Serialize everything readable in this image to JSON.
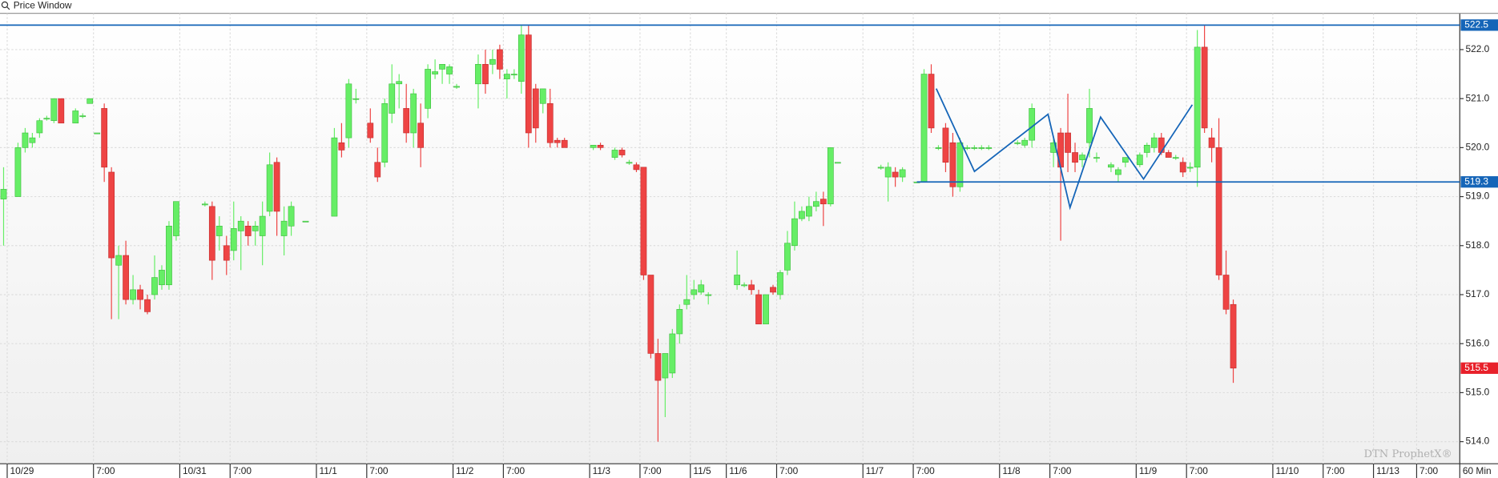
{
  "window_title": "Price Window",
  "chart_data": {
    "type": "candlestick",
    "interval": "60 Min",
    "watermark": "DTN ProphetX®",
    "categories": [
      null,
      "10/29",
      null,
      null,
      null,
      null,
      null,
      null,
      null,
      null,
      null,
      null,
      null,
      "7:00",
      null,
      null,
      null,
      null,
      null,
      null,
      null,
      null,
      null,
      null,
      null,
      "10/31",
      null,
      null,
      null,
      null,
      null,
      null,
      "7:00",
      null,
      null,
      null,
      null,
      null,
      null,
      null,
      null,
      null,
      null,
      null,
      "11/1",
      null,
      null,
      null,
      null,
      null,
      null,
      "7:00",
      null,
      null,
      null,
      null,
      null,
      null,
      null,
      null,
      null,
      null,
      null,
      "11/2",
      null,
      null,
      null,
      null,
      null,
      null,
      "7:00",
      null,
      null,
      null,
      null,
      null,
      null,
      null,
      null,
      null,
      null,
      null,
      "11/3",
      null,
      null,
      null,
      null,
      null,
      null,
      "7:00",
      null,
      null,
      null,
      null,
      null,
      null,
      "11/5",
      null,
      null,
      null,
      null,
      "11/6",
      null,
      null,
      null,
      null,
      null,
      null,
      "7:00",
      null,
      null,
      null,
      null,
      null,
      null,
      null,
      null,
      null,
      null,
      null,
      "11/7",
      null,
      null,
      null,
      null,
      null,
      null,
      "7:00",
      null,
      null,
      null,
      null,
      null,
      null,
      null,
      null,
      null,
      null,
      null,
      "11/8",
      null,
      null,
      null,
      null,
      null,
      null,
      "7:00",
      null,
      null,
      null,
      null,
      null,
      null,
      null,
      null,
      null,
      null,
      null,
      "11/9",
      null,
      null,
      null,
      null,
      null,
      null,
      "7:00",
      null,
      null,
      null,
      null,
      null,
      null,
      null,
      null,
      null,
      null,
      null,
      "11/10",
      null,
      null,
      null,
      null,
      null,
      null,
      "7:00",
      null,
      null,
      null,
      null,
      null,
      null,
      "11/13",
      null,
      null,
      null,
      null,
      null,
      "7:00",
      null,
      null,
      null,
      null,
      null
    ],
    "open": [
      518.95,
      null,
      519.0,
      520.0,
      520.1,
      520.3,
      520.6,
      520.55,
      521.0,
      null,
      520.5,
      520.65,
      520.9,
      520.3,
      520.8,
      519.5,
      517.6,
      517.8,
      516.9,
      517.1,
      516.9,
      517.0,
      517.2,
      517.2,
      518.2,
      null,
      null,
      null,
      518.85,
      518.8,
      518.2,
      518.0,
      517.9,
      518.3,
      518.4,
      518.3,
      518.2,
      518.7,
      519.7,
      518.2,
      518.4,
      null,
      518.5,
      null,
      null,
      null,
      518.6,
      520.1,
      520.2,
      521.0,
      null,
      520.5,
      519.7,
      519.7,
      520.7,
      521.3,
      520.8,
      520.3,
      520.5,
      520.8,
      521.5,
      521.6,
      521.5,
      521.25,
      null,
      null,
      521.3,
      521.7,
      521.7,
      522.0,
      521.4,
      521.5,
      521.35,
      522.3,
      521.2,
      520.9,
      520.9,
      520.15,
      520.15,
      null,
      null,
      null,
      520.0,
      520.05,
      null,
      519.8,
      519.95,
      519.7,
      519.65,
      519.6,
      517.4,
      515.8,
      515.3,
      515.4,
      516.2,
      516.8,
      517.0,
      517.05,
      517.0,
      null,
      null,
      null,
      517.2,
      517.2,
      517.2,
      517.0,
      516.4,
      517.15,
      517.0,
      517.5,
      518.0,
      518.55,
      518.6,
      518.8,
      518.95,
      518.85,
      519.7,
      null,
      null,
      null,
      null,
      null,
      519.6,
      519.4,
      519.5,
      519.4,
      null,
      519.3,
      519.3,
      521.5,
      520.0,
      520.4,
      520.1,
      519.2,
      520.0,
      520.0,
      520.0,
      520.0,
      null,
      null,
      null,
      520.1,
      520.05,
      520.15,
      null,
      null,
      519.9,
      520.3,
      520.3,
      519.9,
      519.75,
      520.1,
      519.8,
      null,
      519.6,
      519.45,
      519.7,
      null,
      519.65,
      519.9,
      520.0,
      520.2,
      519.9,
      519.8,
      519.7,
      519.6,
      519.6,
      522.05,
      520.2,
      520.0,
      517.4,
      516.8,
      null,
      null,
      null,
      null,
      null,
      null,
      null,
      null,
      null,
      null,
      null,
      null,
      null,
      null,
      null,
      null,
      null,
      null,
      null,
      null,
      null,
      null,
      null,
      null,
      null,
      null,
      null,
      null,
      null,
      null,
      null
    ],
    "high": [
      519.6,
      null,
      520.1,
      520.4,
      520.3,
      520.6,
      520.65,
      521.0,
      521.0,
      null,
      520.8,
      520.7,
      521.0,
      520.3,
      520.9,
      519.6,
      518.0,
      518.1,
      517.4,
      517.2,
      517.0,
      517.8,
      517.6,
      518.5,
      518.9,
      null,
      null,
      null,
      518.9,
      518.9,
      518.6,
      518.2,
      518.9,
      518.6,
      518.5,
      518.5,
      518.9,
      519.9,
      519.8,
      518.8,
      518.9,
      null,
      518.5,
      null,
      null,
      null,
      520.4,
      520.5,
      521.4,
      521.2,
      null,
      520.8,
      520.0,
      521.0,
      521.7,
      521.5,
      521.3,
      521.2,
      520.9,
      521.7,
      521.8,
      521.7,
      521.7,
      521.3,
      null,
      null,
      521.9,
      522.0,
      522.0,
      522.1,
      521.6,
      521.6,
      522.5,
      522.5,
      521.3,
      521.2,
      521.2,
      520.2,
      520.2,
      null,
      null,
      null,
      520.05,
      520.1,
      null,
      520.0,
      520.0,
      519.75,
      519.7,
      519.6,
      517.4,
      516.1,
      515.8,
      516.3,
      516.8,
      517.4,
      517.3,
      517.3,
      517.05,
      null,
      null,
      null,
      517.9,
      517.25,
      517.3,
      517.1,
      517.0,
      517.2,
      517.5,
      518.3,
      518.9,
      518.8,
      519.0,
      519.1,
      519.1,
      520.0,
      519.7,
      null,
      null,
      null,
      null,
      null,
      519.65,
      519.7,
      519.6,
      519.6,
      null,
      519.3,
      521.6,
      521.7,
      520.05,
      520.5,
      520.3,
      520.2,
      520.05,
      520.05,
      520.05,
      520.05,
      null,
      null,
      null,
      520.15,
      520.2,
      520.9,
      null,
      null,
      520.2,
      520.4,
      521.1,
      520.1,
      519.9,
      521.2,
      519.9,
      null,
      519.7,
      519.6,
      519.8,
      null,
      519.9,
      520.1,
      520.3,
      520.3,
      519.95,
      519.85,
      519.8,
      519.7,
      522.4,
      522.5,
      520.4,
      520.6,
      517.9,
      516.9,
      null,
      null,
      null,
      null,
      null,
      null,
      null,
      null,
      null,
      null,
      null,
      null,
      null,
      null,
      null,
      null,
      null,
      null,
      null,
      null,
      null,
      null,
      null,
      null,
      null,
      null,
      null,
      null,
      null,
      null,
      null
    ],
    "low": [
      518.0,
      null,
      519.0,
      519.9,
      520.0,
      520.2,
      520.55,
      520.5,
      520.5,
      null,
      520.5,
      520.6,
      520.9,
      520.3,
      519.3,
      516.5,
      516.5,
      516.8,
      516.8,
      516.7,
      516.6,
      516.9,
      517.1,
      517.1,
      518.1,
      null,
      null,
      null,
      518.8,
      517.3,
      517.9,
      517.4,
      517.7,
      517.5,
      518.0,
      518.0,
      517.6,
      518.6,
      518.2,
      517.8,
      518.2,
      null,
      518.5,
      null,
      null,
      null,
      518.6,
      519.8,
      520.0,
      520.9,
      null,
      520.1,
      519.3,
      519.6,
      520.5,
      520.8,
      520.1,
      520.0,
      519.6,
      520.6,
      521.4,
      521.3,
      521.3,
      521.2,
      null,
      null,
      520.8,
      521.1,
      521.5,
      521.4,
      521.0,
      521.4,
      521.1,
      520.0,
      520.1,
      520.7,
      520.0,
      520.0,
      520.0,
      null,
      null,
      null,
      519.95,
      519.95,
      null,
      519.75,
      519.8,
      519.65,
      519.5,
      517.3,
      515.7,
      514.0,
      514.5,
      515.3,
      516.0,
      516.7,
      516.9,
      517.0,
      516.8,
      null,
      null,
      null,
      517.1,
      517.15,
      517.0,
      516.4,
      516.4,
      517.0,
      516.9,
      517.4,
      517.9,
      518.5,
      518.5,
      518.7,
      518.4,
      518.8,
      519.7,
      null,
      null,
      null,
      null,
      null,
      519.55,
      518.9,
      519.2,
      519.3,
      null,
      519.3,
      519.3,
      520.3,
      519.95,
      519.5,
      519.0,
      519.1,
      519.95,
      519.95,
      519.95,
      519.95,
      null,
      null,
      null,
      520.05,
      520.0,
      520.0,
      null,
      null,
      519.6,
      518.1,
      519.5,
      519.5,
      519.6,
      519.8,
      519.7,
      null,
      519.5,
      519.3,
      519.6,
      null,
      519.6,
      519.8,
      519.9,
      519.85,
      519.8,
      519.75,
      519.4,
      519.5,
      519.2,
      520.3,
      519.7,
      517.3,
      516.6,
      515.2,
      null,
      null,
      null,
      null,
      null,
      null,
      null,
      null,
      null,
      null,
      null,
      null,
      null,
      null,
      null,
      null,
      null,
      null,
      null,
      null,
      null,
      null,
      null,
      null,
      null,
      null,
      null,
      null,
      null,
      null,
      null
    ],
    "close": [
      519.15,
      null,
      520.0,
      520.3,
      520.2,
      520.55,
      520.6,
      521.0,
      520.5,
      null,
      520.75,
      520.65,
      521.0,
      520.3,
      519.6,
      517.75,
      517.8,
      516.9,
      517.1,
      516.9,
      516.65,
      517.35,
      517.5,
      518.4,
      518.9,
      null,
      null,
      null,
      518.85,
      517.7,
      518.4,
      517.7,
      518.35,
      518.5,
      518.2,
      518.4,
      518.6,
      519.65,
      518.7,
      518.5,
      518.8,
      null,
      518.5,
      null,
      null,
      null,
      520.2,
      519.95,
      521.3,
      521.0,
      null,
      520.2,
      519.4,
      520.9,
      521.3,
      521.35,
      520.3,
      521.1,
      520.0,
      521.6,
      521.55,
      521.7,
      521.65,
      521.25,
      null,
      null,
      521.7,
      521.3,
      521.8,
      521.6,
      521.5,
      521.5,
      522.3,
      520.3,
      520.4,
      521.2,
      520.1,
      520.1,
      520.0,
      null,
      null,
      null,
      520.05,
      520.0,
      null,
      519.95,
      519.85,
      519.7,
      519.55,
      517.4,
      515.8,
      515.25,
      515.8,
      516.2,
      516.7,
      516.9,
      517.1,
      517.2,
      517.0,
      null,
      null,
      null,
      517.4,
      517.2,
      517.1,
      516.4,
      517.0,
      517.05,
      517.45,
      518.05,
      518.55,
      518.7,
      518.8,
      518.9,
      518.85,
      520.0,
      519.7,
      null,
      null,
      null,
      null,
      null,
      519.6,
      519.6,
      519.4,
      519.55,
      null,
      519.3,
      521.5,
      520.4,
      520.0,
      519.7,
      519.2,
      520.1,
      520.0,
      520.0,
      520.0,
      520.0,
      null,
      null,
      null,
      520.1,
      520.15,
      520.8,
      null,
      null,
      520.1,
      519.6,
      519.9,
      519.7,
      519.85,
      520.8,
      519.8,
      null,
      519.65,
      519.55,
      519.8,
      null,
      519.85,
      520.05,
      520.2,
      519.9,
      519.8,
      519.8,
      519.5,
      519.6,
      522.05,
      520.4,
      520.0,
      517.4,
      516.7,
      515.5,
      null,
      null,
      null,
      null,
      null,
      null,
      null,
      null,
      null,
      null,
      null,
      null,
      null,
      null,
      null,
      null,
      null,
      null,
      null,
      null,
      null,
      null,
      null,
      null,
      null,
      null,
      null,
      null,
      null,
      null,
      null
    ],
    "up_color": "#66ee66",
    "down_color": "#ee4444",
    "ylim": [
      513.55,
      522.74
    ],
    "yticks": [
      {
        "value": 514,
        "label": "514.0"
      },
      {
        "value": 515,
        "label": "515.0"
      },
      {
        "value": 516,
        "label": "516.0"
      },
      {
        "value": 517,
        "label": "517.0"
      },
      {
        "value": 518,
        "label": "518.0"
      },
      {
        "value": 519,
        "label": "519.0"
      },
      {
        "value": 520,
        "label": "520.0"
      },
      {
        "value": 521,
        "label": "521.0"
      },
      {
        "value": 522,
        "label": "522.0"
      }
    ],
    "grid": true,
    "levels": [
      {
        "value": 522.5,
        "color": "#1565b8"
      },
      {
        "value": 519.3,
        "color": "#1565b8"
      }
    ],
    "last_price": 515.5,
    "last_color": "#e8202a"
  }
}
